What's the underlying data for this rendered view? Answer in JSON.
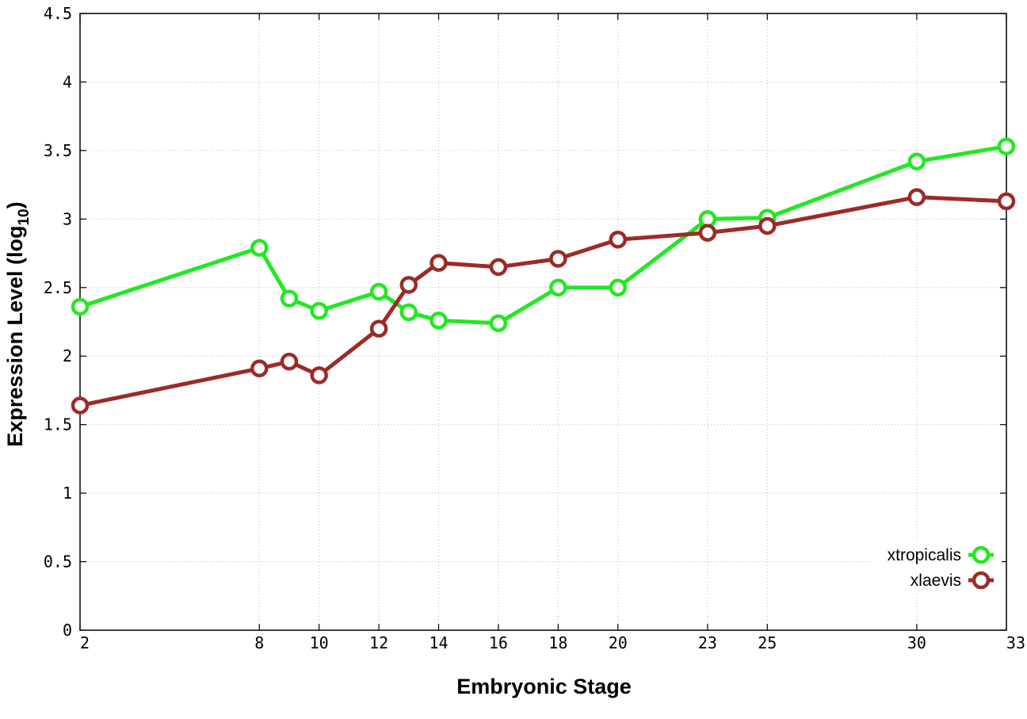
{
  "chart_data": {
    "type": "line",
    "title": "",
    "xlabel": "Embryonic Stage",
    "ylabel_main": "Expression Level (log",
    "ylabel_sub": "10",
    "ylabel_close": ")",
    "x": [
      2,
      8,
      9,
      10,
      12,
      13,
      14,
      16,
      18,
      20,
      23,
      25,
      30,
      33
    ],
    "x_ticks": [
      2,
      8,
      10,
      12,
      14,
      16,
      18,
      20,
      23,
      25,
      30,
      33
    ],
    "x_tick_labels": [
      "2",
      "8",
      "10",
      "12",
      "14",
      "16",
      "18",
      "20",
      "23",
      "25",
      "30",
      "33"
    ],
    "xlim": [
      2,
      33
    ],
    "y_ticks": [
      0,
      0.5,
      1,
      1.5,
      2,
      2.5,
      3,
      3.5,
      4,
      4.5
    ],
    "y_tick_labels": [
      "0",
      "0.5",
      "1",
      "1.5",
      "2",
      "2.5",
      "3",
      "3.5",
      "4",
      "4.5"
    ],
    "ylim": [
      0,
      4.5
    ],
    "grid": true,
    "legend_position": "bottom-right",
    "series": [
      {
        "name": "xtropicalis",
        "color": "#22e822",
        "values": [
          2.36,
          2.79,
          2.42,
          2.33,
          2.47,
          2.32,
          2.26,
          2.24,
          2.5,
          2.5,
          3.0,
          3.01,
          3.42,
          3.53
        ]
      },
      {
        "name": "xlaevis",
        "color": "#9b2b28",
        "values": [
          1.64,
          1.91,
          1.96,
          1.86,
          2.2,
          2.52,
          2.68,
          2.65,
          2.71,
          2.85,
          2.9,
          2.95,
          3.16,
          3.13
        ]
      }
    ]
  }
}
